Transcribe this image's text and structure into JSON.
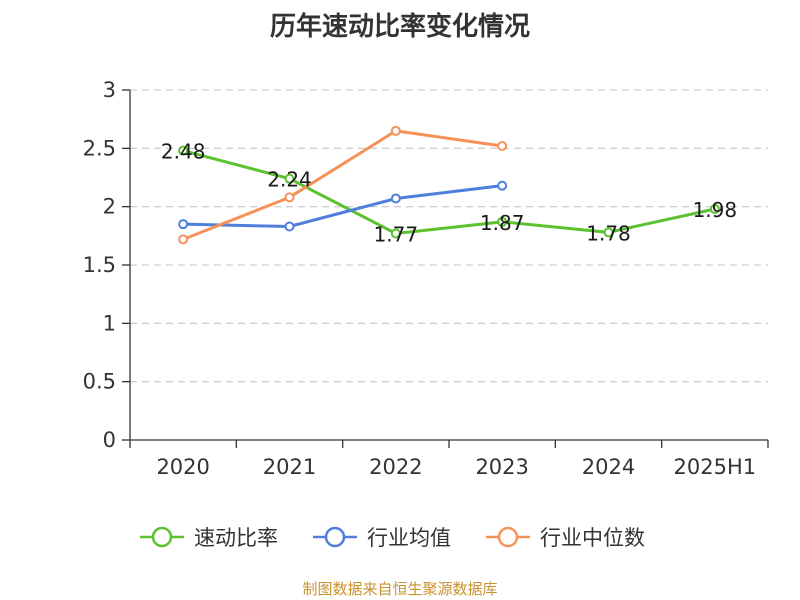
{
  "chart_data": {
    "type": "line",
    "title": "历年速动比率变化情况",
    "categories": [
      "2020",
      "2021",
      "2022",
      "2023",
      "2024",
      "2025H1"
    ],
    "ylim": [
      0,
      3
    ],
    "yticks": [
      "0",
      "0.5",
      "1",
      "1.5",
      "2",
      "2.5",
      "3"
    ],
    "ytick_values": [
      0,
      0.5,
      1,
      1.5,
      2,
      2.5,
      3
    ],
    "grid": true,
    "legend_position": "bottom",
    "series": [
      {
        "name": "速动比率",
        "color": "#5cc12e",
        "values": [
          2.48,
          2.24,
          1.77,
          1.87,
          1.78,
          1.98
        ],
        "labels": [
          "2.48",
          "2.24",
          "1.77",
          "1.87",
          "1.78",
          "1.98"
        ]
      },
      {
        "name": "行业均值",
        "color": "#4f7fdb",
        "values": [
          1.85,
          1.83,
          2.07,
          2.18,
          null,
          null
        ]
      },
      {
        "name": "行业中位数",
        "color": "#f5925a",
        "values": [
          1.72,
          2.08,
          2.65,
          2.52,
          null,
          null
        ]
      }
    ]
  },
  "source": "制图数据来自恒生聚源数据库"
}
